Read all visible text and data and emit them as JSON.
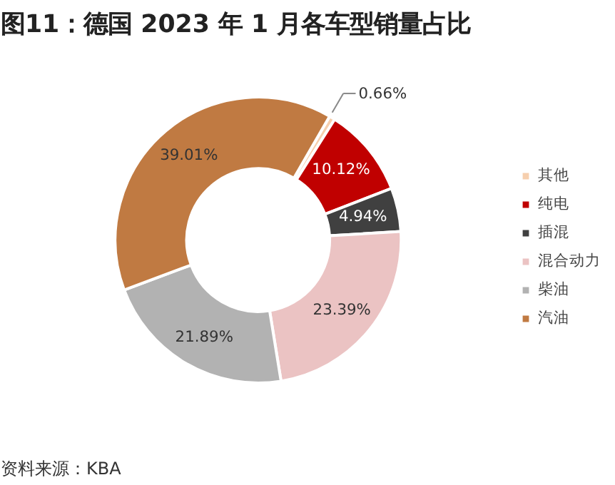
{
  "chart_data": {
    "type": "donut",
    "title": "图11：德国 2023 年 1 月各车型销量占比",
    "categories": [
      "其他",
      "纯电",
      "插混",
      "混合动力",
      "柴油",
      "汽油"
    ],
    "values": [
      0.66,
      10.12,
      4.94,
      23.39,
      21.89,
      39.01
    ],
    "colors": [
      "#f6cfae",
      "#c00000",
      "#404040",
      "#ebc3c3",
      "#b2b2b2",
      "#c07a42"
    ],
    "value_labels": [
      "0.66%",
      "10.12%",
      "4.94%",
      "23.39%",
      "21.89%",
      "39.01%"
    ],
    "legend": "right",
    "annotations": [
      "资料来源：KBA"
    ]
  }
}
